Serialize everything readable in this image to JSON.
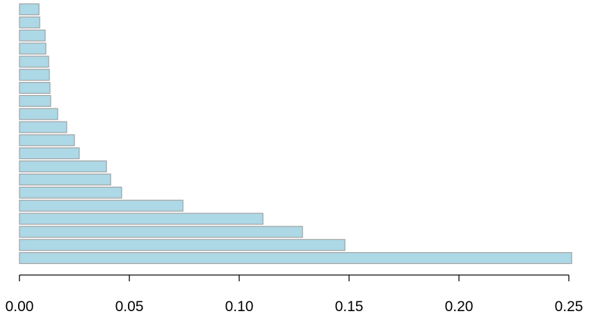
{
  "chart_data": {
    "type": "barh",
    "values": [
      0.2513,
      0.1481,
      0.1288,
      0.1108,
      0.0744,
      0.0465,
      0.0415,
      0.0396,
      0.0272,
      0.025,
      0.0215,
      0.0174,
      0.0142,
      0.0139,
      0.0136,
      0.0133,
      0.012,
      0.0117,
      0.0092,
      0.0089
    ],
    "color": "#add8e6",
    "edgecolor": "#a0a0a0",
    "xlim": [
      0,
      0.25
    ],
    "xticks": [
      {
        "value": 0,
        "label": "0.00"
      },
      {
        "value": 0.05,
        "label": "0.05"
      },
      {
        "value": 0.1,
        "label": "0.10"
      },
      {
        "value": 0.15,
        "label": "0.15"
      },
      {
        "value": 0.2,
        "label": "0.20"
      },
      {
        "value": 0.25,
        "label": "0.25"
      }
    ]
  }
}
